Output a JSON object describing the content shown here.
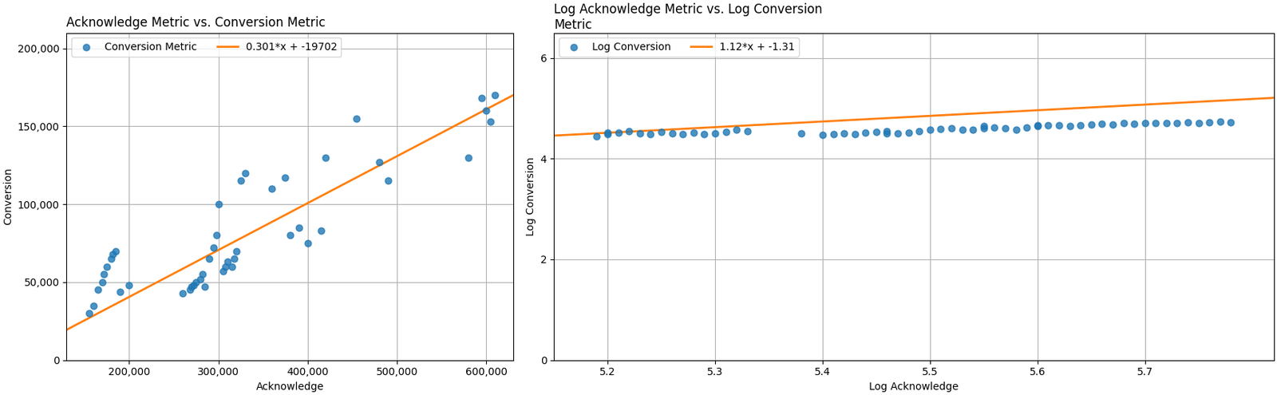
{
  "chart_data": [
    {
      "type": "scatter",
      "title": "Acknowledge Metric vs. Conversion Metric",
      "x_label": "Acknowledge",
      "y_label": "Conversion",
      "series": [
        {
          "name": "Conversion Metric",
          "type": "scatter",
          "marker": "o",
          "x": [
            155000,
            160000,
            165000,
            170000,
            172000,
            175000,
            180000,
            182000,
            185000,
            190000,
            200000,
            260000,
            268000,
            270000,
            272000,
            275000,
            280000,
            282000,
            285000,
            290000,
            295000,
            298000,
            300000,
            305000,
            308000,
            310000,
            315000,
            318000,
            320000,
            325000,
            330000,
            360000,
            375000,
            380000,
            390000,
            400000,
            415000,
            420000,
            455000,
            480000,
            490000,
            580000,
            595000,
            600000,
            605000,
            610000
          ],
          "values": [
            30000,
            35000,
            45000,
            50000,
            55000,
            60000,
            65000,
            68000,
            70000,
            44000,
            48000,
            43000,
            45000,
            47000,
            48000,
            50000,
            52000,
            55000,
            47000,
            65000,
            72000,
            80000,
            100000,
            57000,
            60000,
            63000,
            60000,
            65000,
            70000,
            115000,
            120000,
            110000,
            117000,
            80000,
            85000,
            75000,
            83000,
            130000,
            155000,
            127000,
            115000,
            130000,
            168000,
            160000,
            153000,
            170000
          ]
        },
        {
          "name": "0.301*x + -19702",
          "type": "line",
          "line_style": "solid",
          "x": [
            130000,
            630000
          ],
          "values": [
            19428,
            169928
          ]
        }
      ],
      "xlim": [
        130000,
        630000
      ],
      "ylim": [
        0,
        210000
      ],
      "xticks": [
        {
          "value": 200000,
          "label": "200,000"
        },
        {
          "value": 300000,
          "label": "300,000"
        },
        {
          "value": 400000,
          "label": "400,000"
        },
        {
          "value": 500000,
          "label": "500,000"
        },
        {
          "value": 600000,
          "label": "600,000"
        }
      ],
      "yticks": [
        0,
        {
          "value": 50000,
          "label": "50,000"
        },
        {
          "value": 100000,
          "label": "100,000"
        },
        {
          "value": 150000,
          "label": "150,000"
        },
        {
          "value": 200000,
          "label": "200,000"
        }
      ],
      "grid": true,
      "legend": "upper left"
    },
    {
      "type": "scatter",
      "title": "Log Acknowledge Metric vs. Log Conversion\nMetric",
      "x_label": "Log Acknowledge",
      "y_label": "Log Conversion",
      "series": [
        {
          "name": "Log Conversion",
          "type": "scatter",
          "marker": "o",
          "x": [
            5.19,
            5.2,
            5.2,
            5.21,
            5.22,
            5.23,
            5.24,
            5.25,
            5.26,
            5.27,
            5.28,
            5.29,
            5.3,
            5.31,
            5.32,
            5.33,
            5.38,
            5.4,
            5.41,
            5.42,
            5.43,
            5.44,
            5.45,
            5.46,
            5.46,
            5.47,
            5.48,
            5.49,
            5.5,
            5.51,
            5.52,
            5.53,
            5.54,
            5.55,
            5.55,
            5.56,
            5.57,
            5.58,
            5.59,
            5.6,
            5.6,
            5.61,
            5.62,
            5.63,
            5.64,
            5.65,
            5.66,
            5.67,
            5.68,
            5.69,
            5.7,
            5.71,
            5.72,
            5.73,
            5.74,
            5.75,
            5.76,
            5.77,
            5.78
          ],
          "values": [
            4.45,
            4.48,
            4.52,
            4.52,
            4.55,
            4.5,
            4.48,
            4.53,
            4.5,
            4.49,
            4.51,
            4.49,
            4.5,
            4.53,
            4.57,
            4.55,
            4.5,
            4.47,
            4.48,
            4.5,
            4.49,
            4.52,
            4.53,
            4.5,
            4.55,
            4.5,
            4.51,
            4.54,
            4.57,
            4.59,
            4.6,
            4.57,
            4.58,
            4.61,
            4.65,
            4.62,
            4.6,
            4.58,
            4.62,
            4.65,
            4.67,
            4.67,
            4.66,
            4.65,
            4.67,
            4.68,
            4.69,
            4.68,
            4.7,
            4.69,
            4.7,
            4.71,
            4.71,
            4.7,
            4.72,
            4.71,
            4.72,
            4.73,
            4.72
          ]
        },
        {
          "name": "1.12*x + -1.31",
          "type": "line",
          "line_style": "solid",
          "x": [
            5.15,
            5.82
          ],
          "values": [
            4.458,
            5.2084
          ]
        }
      ],
      "xlim": [
        5.15,
        5.82
      ],
      "ylim": [
        0,
        6.5
      ],
      "xticks": [
        5.2,
        5.3,
        5.4,
        5.5,
        5.6,
        5.7
      ],
      "yticks": [
        0,
        2,
        4,
        6
      ],
      "grid": true,
      "legend": "upper left"
    }
  ]
}
